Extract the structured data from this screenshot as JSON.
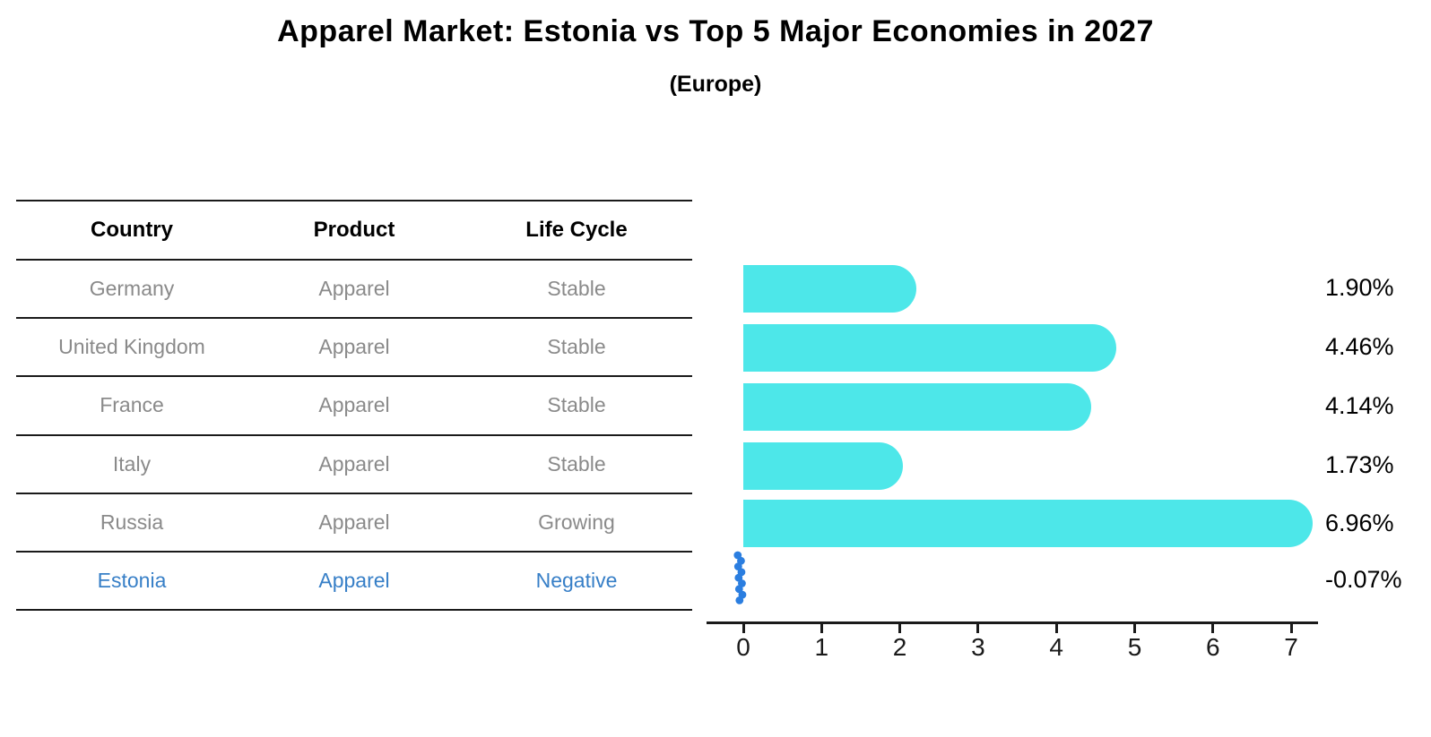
{
  "title": "Apparel Market: Estonia vs Top 5 Major Economies in 2027",
  "subtitle": "(Europe)",
  "colors": {
    "bar": "#4de7e9",
    "highlight_marker": "#2b7ee0",
    "highlight_text": "#377fc7",
    "row_text": "#8a8a8a",
    "header_text": "#000000",
    "line": "#1a1a1a"
  },
  "table": {
    "columns": [
      "Country",
      "Product",
      "Life Cycle"
    ],
    "rows": [
      {
        "country": "Germany",
        "product": "Apparel",
        "life_cycle": "Stable",
        "highlighted": false
      },
      {
        "country": "United Kingdom",
        "product": "Apparel",
        "life_cycle": "Stable",
        "highlighted": false
      },
      {
        "country": "France",
        "product": "Apparel",
        "life_cycle": "Stable",
        "highlighted": false
      },
      {
        "country": "Italy",
        "product": "Apparel",
        "life_cycle": "Stable",
        "highlighted": false
      },
      {
        "country": "Russia",
        "product": "Apparel",
        "life_cycle": "Growing",
        "highlighted": false
      },
      {
        "country": "Estonia",
        "product": "Apparel",
        "life_cycle": "Negative",
        "highlighted": true
      }
    ]
  },
  "chart_data": {
    "type": "bar",
    "orientation": "horizontal",
    "title": "Apparel Market: Estonia vs Top 5 Major Economies in 2027 (Europe)",
    "categories": [
      "Germany",
      "United Kingdom",
      "France",
      "Italy",
      "Russia",
      "Estonia"
    ],
    "values": [
      1.9,
      4.46,
      4.14,
      1.73,
      6.96,
      -0.07
    ],
    "value_labels": [
      "1.90%",
      "4.46%",
      "4.14%",
      "1.73%",
      "6.96%",
      "-0.07%"
    ],
    "x_ticks": [
      "0",
      "1",
      "2",
      "3",
      "4",
      "5",
      "6",
      "7"
    ],
    "xlim": [
      0,
      7.3
    ],
    "xlabel": "",
    "ylabel": "",
    "grid": false,
    "legend": false,
    "highlight_category": "Estonia"
  }
}
